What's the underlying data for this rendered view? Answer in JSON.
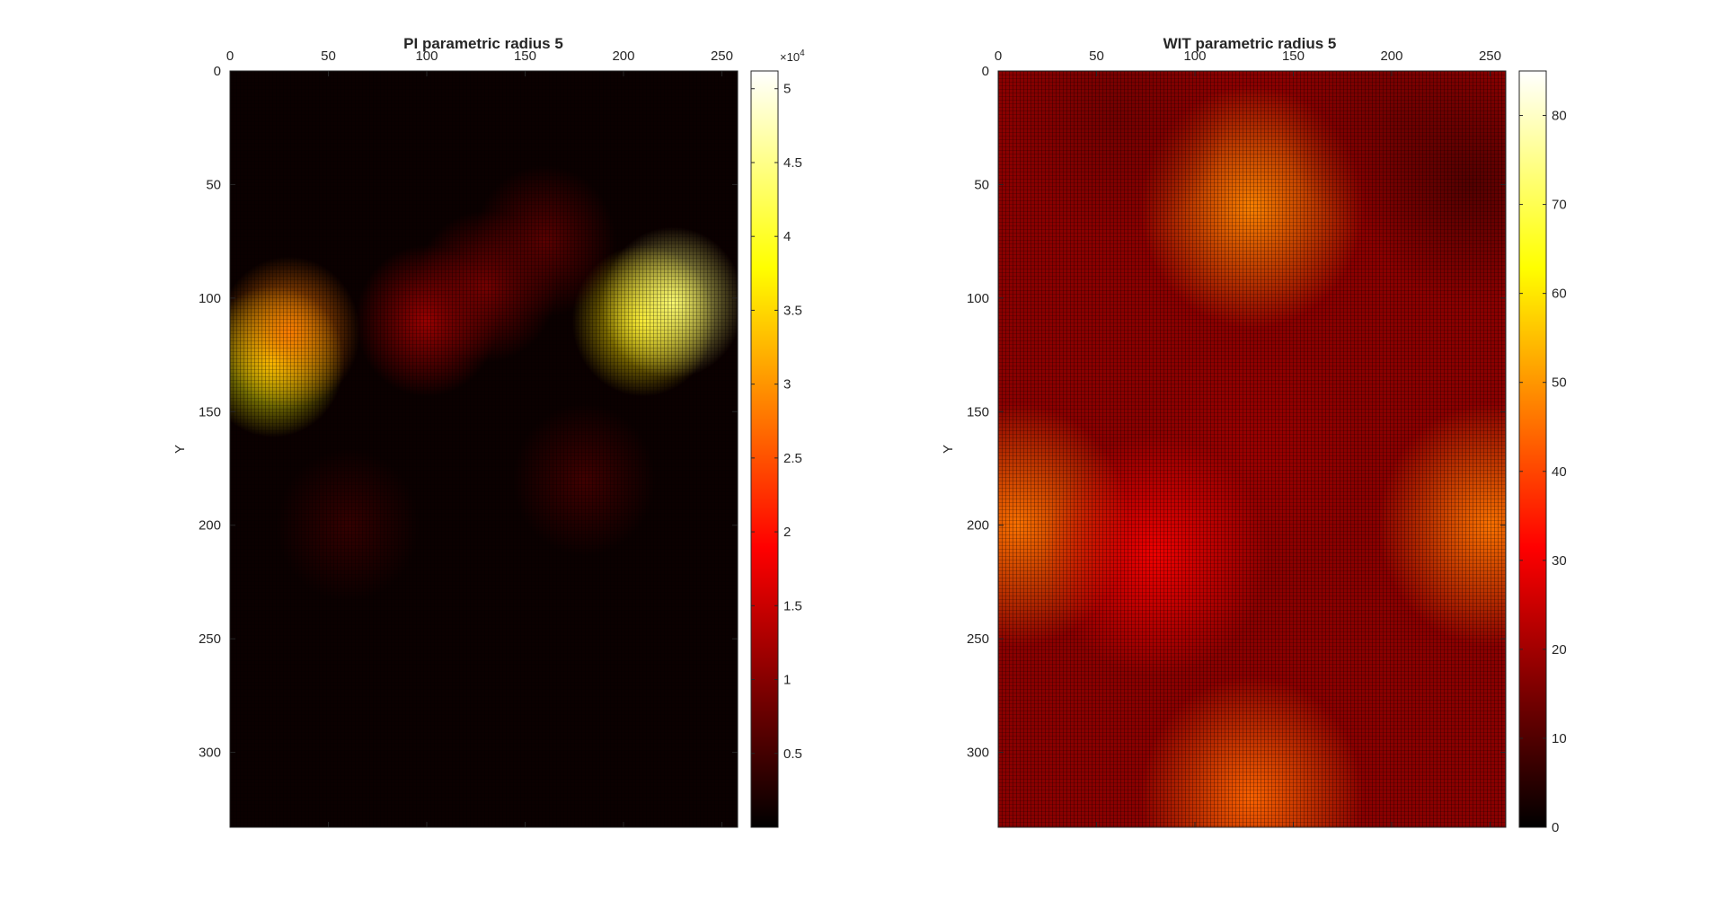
{
  "window": {
    "title": ""
  },
  "chart_data": [
    {
      "type": "heatmap",
      "title": "PI parametric radius 5",
      "xlabel": "",
      "ylabel": "Y",
      "xlim": [
        0,
        258
      ],
      "ylim": [
        0,
        333
      ],
      "y_reversed": true,
      "x_axis_location": "top",
      "xticks": [
        0,
        50,
        100,
        150,
        200,
        250
      ],
      "xtick_labels": [
        "0",
        "50",
        "100",
        "150",
        "200",
        "250"
      ],
      "yticks": [
        0,
        50,
        100,
        150,
        200,
        250,
        300
      ],
      "ytick_labels": [
        "0",
        "50",
        "100",
        "150",
        "200",
        "250",
        "300"
      ],
      "grid": false,
      "colormap": "hot",
      "colors": [
        "#000000",
        "#ff0000",
        "#ffff00",
        "#ffffff"
      ],
      "colorbar": {
        "range": [
          0,
          51200
        ],
        "ticks": [
          5000,
          10000,
          15000,
          20000,
          25000,
          30000,
          35000,
          40000,
          45000,
          50000
        ],
        "tick_labels": [
          "0.5",
          "1",
          "1.5",
          "2",
          "2.5",
          "3",
          "3.5",
          "4",
          "4.5",
          "5"
        ],
        "exponent_base": "×10",
        "exponent_power": "4"
      },
      "features": [
        {
          "x": 22,
          "y": 128,
          "value": 38000
        },
        {
          "x": 30,
          "y": 115,
          "value": 28000
        },
        {
          "x": 210,
          "y": 110,
          "value": 36000
        },
        {
          "x": 225,
          "y": 102,
          "value": 44000
        },
        {
          "x": 100,
          "y": 110,
          "value": 12000
        },
        {
          "x": 130,
          "y": 95,
          "value": 9000
        },
        {
          "x": 160,
          "y": 75,
          "value": 7000
        },
        {
          "x": 60,
          "y": 200,
          "value": 4000
        },
        {
          "x": 180,
          "y": 180,
          "value": 5000
        }
      ]
    },
    {
      "type": "heatmap",
      "title": "WIT parametric radius 5",
      "xlabel": "",
      "ylabel": "Y",
      "xlim": [
        0,
        258
      ],
      "ylim": [
        0,
        333
      ],
      "y_reversed": true,
      "x_axis_location": "top",
      "xticks": [
        0,
        50,
        100,
        150,
        200,
        250
      ],
      "xtick_labels": [
        "0",
        "50",
        "100",
        "150",
        "200",
        "250"
      ],
      "yticks": [
        0,
        50,
        100,
        150,
        200,
        250,
        300
      ],
      "ytick_labels": [
        "0",
        "50",
        "100",
        "150",
        "200",
        "250",
        "300"
      ],
      "grid": false,
      "colormap": "hot",
      "colors": [
        "#000000",
        "#ff0000",
        "#ffff00",
        "#ffffff"
      ],
      "colorbar": {
        "range": [
          0,
          85
        ],
        "ticks": [
          0,
          10,
          20,
          30,
          40,
          50,
          60,
          70,
          80
        ],
        "tick_labels": [
          "0",
          "10",
          "20",
          "30",
          "40",
          "50",
          "60",
          "70",
          "80"
        ]
      },
      "features": [
        {
          "x": 129,
          "y": 170,
          "value": 19
        },
        {
          "x": 129,
          "y": 60,
          "value": 48
        },
        {
          "x": 10,
          "y": 200,
          "value": 46
        },
        {
          "x": 250,
          "y": 200,
          "value": 46
        },
        {
          "x": 129,
          "y": 320,
          "value": 44
        },
        {
          "x": 60,
          "y": 20,
          "value": 14
        },
        {
          "x": 200,
          "y": 20,
          "value": 14
        },
        {
          "x": 240,
          "y": 50,
          "value": 10
        },
        {
          "x": 80,
          "y": 213,
          "value": 30
        }
      ]
    }
  ]
}
